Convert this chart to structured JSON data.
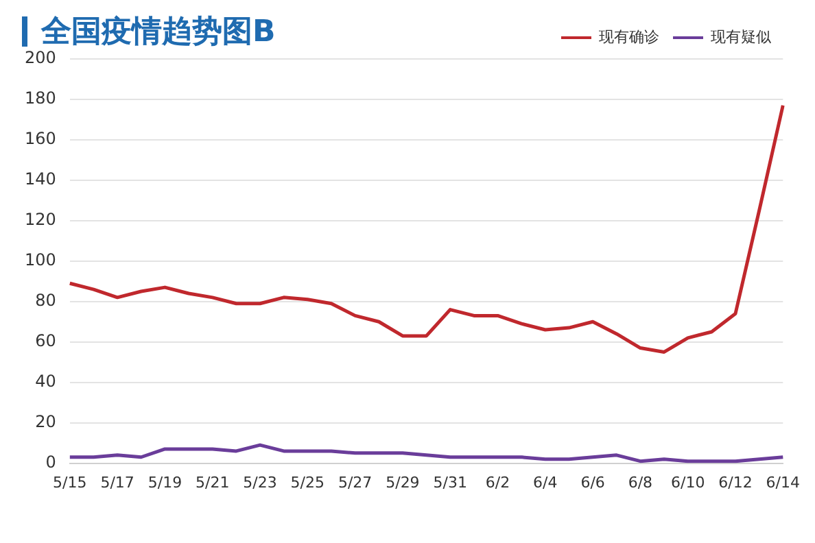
{
  "chart_data": {
    "type": "line",
    "title": "全国疫情趋势图B",
    "categories": [
      "5/15",
      null,
      "5/17",
      null,
      "5/19",
      null,
      "5/21",
      null,
      "5/23",
      null,
      "5/25",
      null,
      "5/27",
      null,
      "5/29",
      null,
      "5/31",
      null,
      "6/2",
      null,
      "6/4",
      null,
      "6/6",
      null,
      "6/8",
      null,
      "6/10",
      null,
      "6/12",
      null,
      "6/14"
    ],
    "series": [
      {
        "name": "现有确诊",
        "color": "#c0282d",
        "values": [
          89,
          86,
          82,
          85,
          87,
          84,
          82,
          79,
          79,
          82,
          81,
          79,
          73,
          70,
          63,
          63,
          76,
          73,
          73,
          69,
          66,
          67,
          70,
          64,
          57,
          55,
          62,
          65,
          74,
          125,
          177
        ]
      },
      {
        "name": "现有疑似",
        "color": "#6a3d9a",
        "values": [
          3,
          3,
          4,
          3,
          7,
          7,
          7,
          6,
          9,
          6,
          6,
          6,
          5,
          5,
          5,
          4,
          3,
          3,
          3,
          3,
          2,
          2,
          3,
          4,
          1,
          2,
          1,
          1,
          1,
          2,
          3
        ]
      }
    ],
    "ylim": [
      0,
      200
    ],
    "yticks": [
      0,
      20,
      40,
      60,
      80,
      100,
      120,
      140,
      160,
      180,
      200
    ],
    "grid": "y",
    "legend": "top right",
    "marker": "none",
    "line_style": "solid"
  }
}
